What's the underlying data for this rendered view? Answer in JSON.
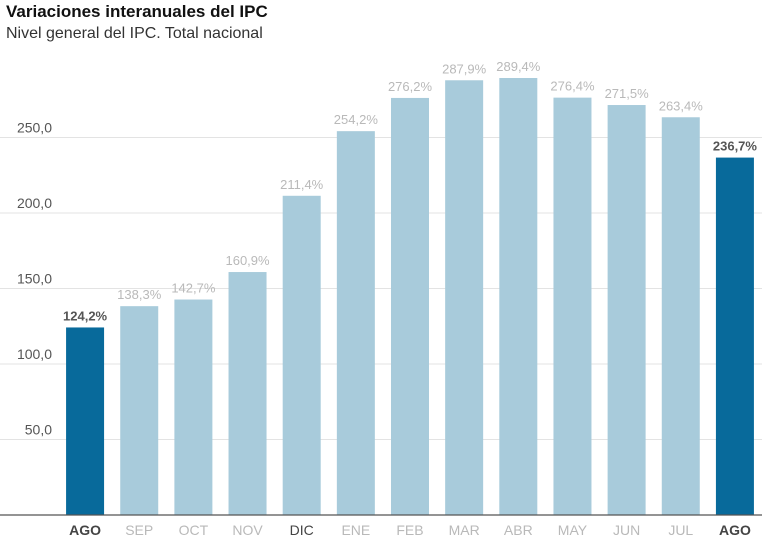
{
  "title": "Variaciones interanuales del IPC",
  "subtitle": "Nivel general del IPC. Total nacional",
  "colors": {
    "highlight": "#086a9b",
    "normal": "#a8cbdb",
    "label_muted": "#b9b9b9",
    "label_strong": "#555555",
    "label_dark": "#444444"
  },
  "chart_data": {
    "type": "bar",
    "title": "Variaciones interanuales del IPC",
    "subtitle": "Nivel general del IPC. Total nacional",
    "categories": [
      "AGO",
      "SEP",
      "OCT",
      "NOV",
      "DIC",
      "ENE",
      "FEB",
      "MAR",
      "ABR",
      "MAY",
      "JUN",
      "JUL",
      "AGO"
    ],
    "values": [
      124.2,
      138.3,
      142.7,
      160.9,
      211.4,
      254.2,
      276.2,
      287.9,
      289.4,
      276.4,
      271.5,
      263.4,
      236.7
    ],
    "value_labels": [
      "124,2%",
      "138,3%",
      "142,7%",
      "160,9%",
      "211,4%",
      "254,2%",
      "276,2%",
      "287,9%",
      "289,4%",
      "276,4%",
      "271,5%",
      "263,4%",
      "236,7%"
    ],
    "highlighted": [
      true,
      false,
      false,
      false,
      false,
      false,
      false,
      false,
      false,
      false,
      false,
      false,
      true
    ],
    "emphasized_category": [
      true,
      false,
      false,
      false,
      true,
      false,
      false,
      false,
      false,
      false,
      false,
      false,
      true
    ],
    "y_ticks": [
      50,
      100,
      150,
      200,
      250
    ],
    "y_tick_labels": [
      "50,0",
      "100,0",
      "150,0",
      "200,0",
      "250,0"
    ],
    "ylim": [
      0,
      300
    ],
    "xlabel": "",
    "ylabel": "",
    "grid": true
  }
}
